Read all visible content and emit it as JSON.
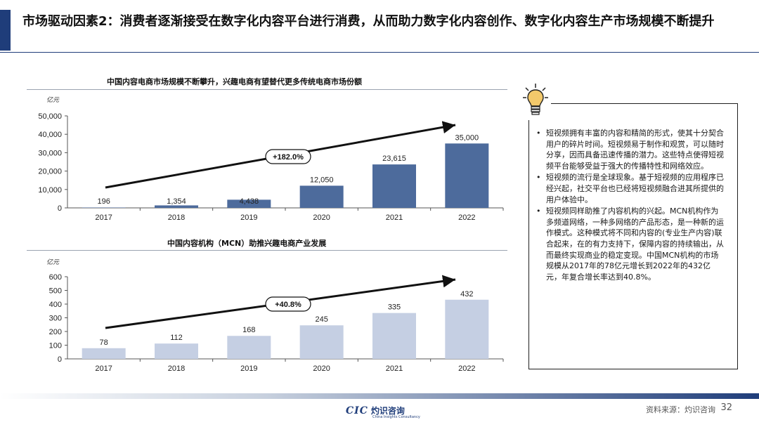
{
  "header": {
    "title": "市场驱动因素2：消费者逐渐接受在数字化内容平台进行消费，从而助力数字化内容创作、数字化内容生产市场规模不断提升"
  },
  "colors": {
    "accent": "#1f3d7a",
    "bar_dark": "#4d6b9c",
    "bar_light": "#c5cfe3"
  },
  "chart_data": [
    {
      "type": "bar",
      "title": "中国内容电商市场规模不断攀升，兴趣电商有望替代更多传统电商市场份额",
      "unit": "亿元",
      "categories": [
        "2017",
        "2018",
        "2019",
        "2020",
        "2021",
        "2022"
      ],
      "values": [
        196,
        1354,
        4438,
        12050,
        23615,
        35000
      ],
      "labels": [
        "196",
        "1,354",
        "4,438",
        "12,050",
        "23,615",
        "35,000"
      ],
      "yticks": [
        "0",
        "10,000",
        "20,000",
        "30,000",
        "40,000",
        "50,000"
      ],
      "ylim": [
        0,
        50000
      ],
      "cagr_label": "+182.0%"
    },
    {
      "type": "bar",
      "title": "中国内容机构（MCN）助推兴趣电商产业发展",
      "unit": "亿元",
      "categories": [
        "2017",
        "2018",
        "2019",
        "2020",
        "2021",
        "2022"
      ],
      "values": [
        78,
        112,
        168,
        245,
        335,
        432
      ],
      "labels": [
        "78",
        "112",
        "168",
        "245",
        "335",
        "432"
      ],
      "yticks": [
        "0",
        "100",
        "200",
        "300",
        "400",
        "500",
        "600"
      ],
      "ylim": [
        0,
        600
      ],
      "cagr_label": "+40.8%"
    }
  ],
  "panel": {
    "bullets": [
      "短视频拥有丰富的内容和精简的形式，使其十分契合用户的碎片时间。短视频易于制作和观赏，可以随时分享，因而具备迅速传播的潜力。这些特点使得短视频平台能够受益于强大的传播特性和网络效应。",
      "短视频的流行是全球现象。基于短视频的应用程序已经兴起，社交平台也已经将短视频融合进其所提供的用户体验中。",
      "短视频同样助推了内容机构的兴起。MCN机构作为多频道网络，一种多网络的产品形态，是一种新的运作模式。这种模式将不同和内容的(专业生产内容)联合起来，在的有力支持下，保障内容的持续输出，从而最终实现商业的稳定变现。中国MCN机构的市场规模从2017年的78亿元增长到2022年的432亿元，年复合增长率达到40.8%。"
    ]
  },
  "footer": {
    "logo_mark": "CIC",
    "logo_cn": "灼识咨询",
    "logo_en": "China Insights Consultancy",
    "source": "资料来源：灼识咨询",
    "page_number": "32"
  }
}
